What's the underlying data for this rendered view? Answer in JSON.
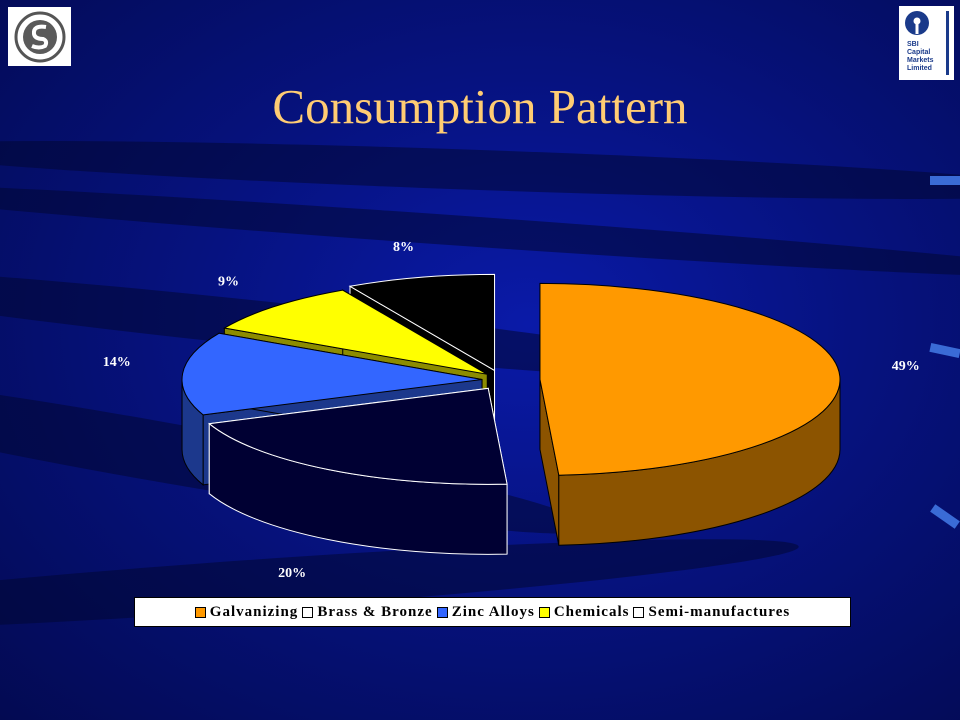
{
  "title": "Consumption Pattern",
  "logos": {
    "right_text": "SBI\nCapital\nMarkets\nLimited",
    "left_text": "STERLITE"
  },
  "colors": {
    "galvanizing": "#ff9900",
    "brass_bronze": "#000033",
    "zinc_alloys": "#3366ff",
    "chemicals": "#ffff00",
    "semi": "#000000"
  },
  "chart_data": {
    "type": "pie",
    "title": "Consumption Pattern",
    "categories": [
      "Galvanizing",
      "Brass & Bronze",
      "Zinc Alloys",
      "Chemicals",
      "Semi-manufactures"
    ],
    "values": [
      49,
      20,
      14,
      9,
      8
    ],
    "labels": [
      "49%",
      "20%",
      "14%",
      "9%",
      "8%"
    ],
    "legend": "bottom",
    "exploded": true,
    "three_d": true
  }
}
